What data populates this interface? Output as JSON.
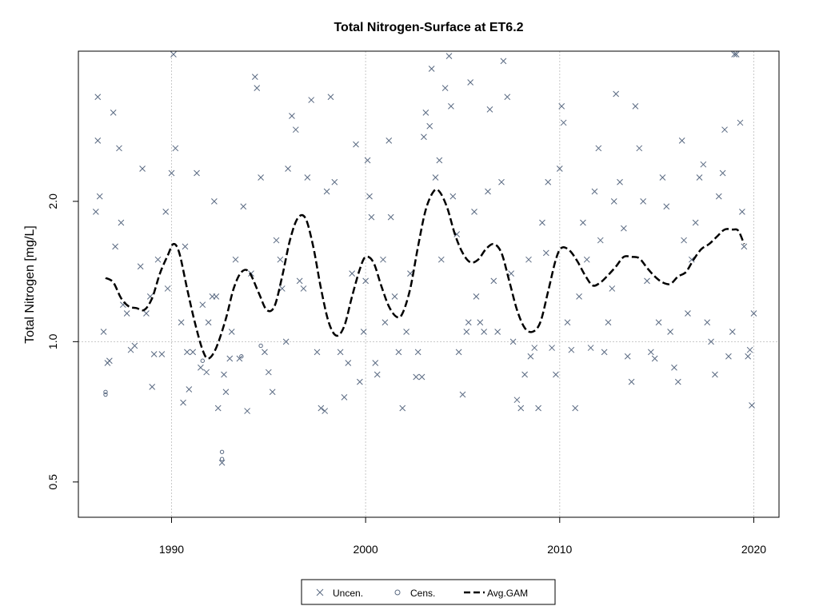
{
  "chart_data": {
    "type": "scatter",
    "title": "Total Nitrogen-Surface at ET6.2",
    "xlabel": "",
    "ylabel": "Total Nitrogen [mg/L]",
    "xlim": [
      1985.2,
      2021.3
    ],
    "ylim": [
      0.42,
      4.2
    ],
    "y_scale": "log",
    "x_ticks": [
      1990,
      2000,
      2010,
      2020
    ],
    "x_tick_labels": [
      "1990",
      "2000",
      "2010",
      "2020"
    ],
    "y_ticks": [
      0.5,
      1.0,
      2.0
    ],
    "y_tick_labels": [
      "0.5",
      "1.0",
      "2.0"
    ],
    "grid": {
      "x": [
        1990,
        2000,
        2010,
        2020
      ],
      "y": [
        1.0
      ],
      "style": "dotted"
    },
    "legend": {
      "position": "bottom-center",
      "entries": [
        {
          "label": "Uncen.",
          "marker": "x"
        },
        {
          "label": "Cens.",
          "marker": "o"
        },
        {
          "label": "Avg.GAM",
          "marker": "dashed-line"
        }
      ]
    },
    "colors": {
      "points": "#5a6a82",
      "gam": "#000000",
      "grid": "#c8c8c8"
    },
    "series": [
      {
        "name": "Uncen.",
        "marker": "x",
        "points": [
          [
            1986.1,
            1.9
          ],
          [
            1986.2,
            3.35
          ],
          [
            1986.2,
            2.7
          ],
          [
            1986.3,
            2.05
          ],
          [
            1986.5,
            1.05
          ],
          [
            1986.7,
            0.9
          ],
          [
            1986.8,
            0.91
          ],
          [
            1987.0,
            3.1
          ],
          [
            1987.1,
            1.6
          ],
          [
            1987.3,
            2.6
          ],
          [
            1987.4,
            1.8
          ],
          [
            1987.5,
            1.2
          ],
          [
            1987.7,
            1.15
          ],
          [
            1987.9,
            0.96
          ],
          [
            1988.1,
            0.98
          ],
          [
            1988.4,
            1.45
          ],
          [
            1988.5,
            2.35
          ],
          [
            1988.7,
            1.15
          ],
          [
            1988.9,
            1.25
          ],
          [
            1989.0,
            0.8
          ],
          [
            1989.1,
            0.94
          ],
          [
            1989.3,
            1.5
          ],
          [
            1989.5,
            0.94
          ],
          [
            1989.7,
            1.9
          ],
          [
            1989.8,
            1.3
          ],
          [
            1990.0,
            2.3
          ],
          [
            1990.1,
            4.15
          ],
          [
            1990.2,
            2.6
          ],
          [
            1990.5,
            1.1
          ],
          [
            1990.6,
            0.74
          ],
          [
            1990.7,
            1.6
          ],
          [
            1990.8,
            0.95
          ],
          [
            1990.9,
            0.79
          ],
          [
            1991.1,
            0.95
          ],
          [
            1991.3,
            2.3
          ],
          [
            1991.5,
            0.88
          ],
          [
            1991.6,
            1.2
          ],
          [
            1991.8,
            0.86
          ],
          [
            1991.9,
            1.1
          ],
          [
            1992.1,
            1.25
          ],
          [
            1992.2,
            2.0
          ],
          [
            1992.3,
            1.25
          ],
          [
            1992.4,
            0.72
          ],
          [
            1992.6,
            0.55
          ],
          [
            1992.7,
            0.85
          ],
          [
            1992.8,
            0.78
          ],
          [
            1993.0,
            0.92
          ],
          [
            1993.1,
            1.05
          ],
          [
            1993.3,
            1.5
          ],
          [
            1993.5,
            0.92
          ],
          [
            1993.7,
            1.95
          ],
          [
            1993.9,
            0.71
          ],
          [
            1994.1,
            1.4
          ],
          [
            1994.3,
            3.7
          ],
          [
            1994.4,
            3.5
          ],
          [
            1994.6,
            2.25
          ],
          [
            1994.8,
            0.95
          ],
          [
            1995.0,
            0.86
          ],
          [
            1995.2,
            0.78
          ],
          [
            1995.4,
            1.65
          ],
          [
            1995.6,
            1.5
          ],
          [
            1995.7,
            1.3
          ],
          [
            1995.9,
            1.0
          ],
          [
            1996.0,
            2.35
          ],
          [
            1996.2,
            3.05
          ],
          [
            1996.4,
            2.85
          ],
          [
            1996.6,
            1.35
          ],
          [
            1996.8,
            1.3
          ],
          [
            1997.0,
            2.25
          ],
          [
            1997.2,
            3.3
          ],
          [
            1997.5,
            0.95
          ],
          [
            1997.7,
            0.72
          ],
          [
            1997.9,
            0.71
          ],
          [
            1998.0,
            2.1
          ],
          [
            1998.2,
            3.35
          ],
          [
            1998.4,
            2.2
          ],
          [
            1998.7,
            0.95
          ],
          [
            1998.9,
            0.76
          ],
          [
            1999.1,
            0.9
          ],
          [
            1999.3,
            1.4
          ],
          [
            1999.5,
            2.65
          ],
          [
            1999.7,
            0.82
          ],
          [
            1999.9,
            1.05
          ],
          [
            2000.0,
            1.35
          ],
          [
            2000.1,
            2.45
          ],
          [
            2000.2,
            2.05
          ],
          [
            2000.3,
            1.85
          ],
          [
            2000.5,
            0.9
          ],
          [
            2000.6,
            0.85
          ],
          [
            2000.9,
            1.5
          ],
          [
            2001.0,
            1.1
          ],
          [
            2001.2,
            2.7
          ],
          [
            2001.3,
            1.85
          ],
          [
            2001.5,
            1.25
          ],
          [
            2001.7,
            0.95
          ],
          [
            2001.9,
            0.72
          ],
          [
            2002.1,
            1.05
          ],
          [
            2002.3,
            1.4
          ],
          [
            2002.6,
            0.84
          ],
          [
            2002.7,
            0.95
          ],
          [
            2002.9,
            0.84
          ],
          [
            2003.0,
            2.75
          ],
          [
            2003.1,
            3.1
          ],
          [
            2003.3,
            2.9
          ],
          [
            2003.4,
            3.85
          ],
          [
            2003.6,
            2.25
          ],
          [
            2003.8,
            2.45
          ],
          [
            2003.9,
            1.5
          ],
          [
            2004.1,
            3.5
          ],
          [
            2004.3,
            4.1
          ],
          [
            2004.4,
            3.2
          ],
          [
            2004.5,
            2.05
          ],
          [
            2004.7,
            1.7
          ],
          [
            2004.8,
            0.95
          ],
          [
            2005.0,
            0.77
          ],
          [
            2005.2,
            1.05
          ],
          [
            2005.3,
            1.1
          ],
          [
            2005.4,
            3.6
          ],
          [
            2005.6,
            1.9
          ],
          [
            2005.7,
            1.25
          ],
          [
            2005.9,
            1.1
          ],
          [
            2006.1,
            1.05
          ],
          [
            2006.3,
            2.1
          ],
          [
            2006.4,
            3.15
          ],
          [
            2006.6,
            1.35
          ],
          [
            2006.8,
            1.05
          ],
          [
            2007.0,
            2.2
          ],
          [
            2007.1,
            4.0
          ],
          [
            2007.3,
            3.35
          ],
          [
            2007.5,
            1.4
          ],
          [
            2007.6,
            1.0
          ],
          [
            2007.8,
            0.75
          ],
          [
            2008.0,
            0.72
          ],
          [
            2008.2,
            0.85
          ],
          [
            2008.4,
            1.5
          ],
          [
            2008.5,
            0.93
          ],
          [
            2008.7,
            0.97
          ],
          [
            2008.9,
            0.72
          ],
          [
            2009.1,
            1.8
          ],
          [
            2009.3,
            1.55
          ],
          [
            2009.4,
            2.2
          ],
          [
            2009.6,
            0.97
          ],
          [
            2009.8,
            0.85
          ],
          [
            2010.0,
            2.35
          ],
          [
            2010.1,
            3.2
          ],
          [
            2010.2,
            2.95
          ],
          [
            2010.4,
            1.1
          ],
          [
            2010.6,
            0.96
          ],
          [
            2010.8,
            0.72
          ],
          [
            2011.0,
            1.25
          ],
          [
            2011.2,
            1.8
          ],
          [
            2011.4,
            1.5
          ],
          [
            2011.6,
            0.97
          ],
          [
            2011.8,
            2.1
          ],
          [
            2012.0,
            2.6
          ],
          [
            2012.1,
            1.65
          ],
          [
            2012.3,
            0.95
          ],
          [
            2012.5,
            1.1
          ],
          [
            2012.7,
            1.3
          ],
          [
            2012.8,
            2.0
          ],
          [
            2012.9,
            3.4
          ],
          [
            2013.1,
            2.2
          ],
          [
            2013.3,
            1.75
          ],
          [
            2013.5,
            0.93
          ],
          [
            2013.7,
            0.82
          ],
          [
            2013.9,
            3.2
          ],
          [
            2014.1,
            2.6
          ],
          [
            2014.3,
            2.0
          ],
          [
            2014.5,
            1.35
          ],
          [
            2014.7,
            0.95
          ],
          [
            2014.9,
            0.92
          ],
          [
            2015.1,
            1.1
          ],
          [
            2015.3,
            2.25
          ],
          [
            2015.5,
            1.95
          ],
          [
            2015.7,
            1.05
          ],
          [
            2015.9,
            0.88
          ],
          [
            2016.1,
            0.82
          ],
          [
            2016.3,
            2.7
          ],
          [
            2016.4,
            1.65
          ],
          [
            2016.6,
            1.15
          ],
          [
            2016.8,
            1.5
          ],
          [
            2017.0,
            1.8
          ],
          [
            2017.2,
            2.25
          ],
          [
            2017.4,
            2.4
          ],
          [
            2017.6,
            1.1
          ],
          [
            2017.8,
            1.0
          ],
          [
            2018.0,
            0.85
          ],
          [
            2018.2,
            2.05
          ],
          [
            2018.4,
            2.3
          ],
          [
            2018.5,
            2.85
          ],
          [
            2018.7,
            0.93
          ],
          [
            2018.9,
            1.05
          ],
          [
            2019.0,
            4.4
          ],
          [
            2019.1,
            4.3
          ],
          [
            2019.3,
            2.95
          ],
          [
            2019.4,
            1.9
          ],
          [
            2019.5,
            1.6
          ],
          [
            2019.7,
            0.93
          ],
          [
            2019.8,
            0.96
          ],
          [
            2019.9,
            0.73
          ],
          [
            2020.0,
            1.15
          ]
        ]
      },
      {
        "name": "Cens.",
        "marker": "o",
        "points": [
          [
            1986.6,
            0.78
          ],
          [
            1986.6,
            0.77
          ],
          [
            1991.6,
            0.91
          ],
          [
            1992.6,
            0.58
          ],
          [
            1992.6,
            0.56
          ],
          [
            1993.6,
            0.93
          ],
          [
            1994.6,
            0.98
          ]
        ]
      },
      {
        "name": "Avg.GAM",
        "marker": "dashed-line",
        "points": [
          [
            1986.6,
            1.37
          ],
          [
            1987.0,
            1.34
          ],
          [
            1987.4,
            1.24
          ],
          [
            1987.8,
            1.19
          ],
          [
            1988.2,
            1.18
          ],
          [
            1988.6,
            1.17
          ],
          [
            1989.0,
            1.24
          ],
          [
            1989.4,
            1.4
          ],
          [
            1989.8,
            1.53
          ],
          [
            1990.1,
            1.62
          ],
          [
            1990.4,
            1.55
          ],
          [
            1990.8,
            1.3
          ],
          [
            1991.2,
            1.1
          ],
          [
            1991.6,
            0.96
          ],
          [
            1991.9,
            0.92
          ],
          [
            1992.3,
            0.97
          ],
          [
            1992.8,
            1.12
          ],
          [
            1993.2,
            1.3
          ],
          [
            1993.6,
            1.41
          ],
          [
            1994.0,
            1.41
          ],
          [
            1994.5,
            1.27
          ],
          [
            1994.9,
            1.17
          ],
          [
            1995.3,
            1.19
          ],
          [
            1995.7,
            1.38
          ],
          [
            1996.1,
            1.65
          ],
          [
            1996.5,
            1.84
          ],
          [
            1996.9,
            1.84
          ],
          [
            1997.3,
            1.6
          ],
          [
            1997.7,
            1.3
          ],
          [
            1998.1,
            1.1
          ],
          [
            1998.5,
            1.03
          ],
          [
            1998.9,
            1.08
          ],
          [
            1999.3,
            1.25
          ],
          [
            1999.7,
            1.43
          ],
          [
            2000.0,
            1.52
          ],
          [
            2000.4,
            1.48
          ],
          [
            2000.8,
            1.32
          ],
          [
            2001.2,
            1.19
          ],
          [
            2001.6,
            1.13
          ],
          [
            2001.9,
            1.15
          ],
          [
            2002.3,
            1.3
          ],
          [
            2002.7,
            1.6
          ],
          [
            2003.1,
            1.92
          ],
          [
            2003.5,
            2.1
          ],
          [
            2003.8,
            2.1
          ],
          [
            2004.2,
            1.94
          ],
          [
            2004.6,
            1.7
          ],
          [
            2005.0,
            1.55
          ],
          [
            2005.4,
            1.48
          ],
          [
            2005.8,
            1.5
          ],
          [
            2006.2,
            1.58
          ],
          [
            2006.6,
            1.62
          ],
          [
            2007.0,
            1.55
          ],
          [
            2007.4,
            1.35
          ],
          [
            2007.8,
            1.17
          ],
          [
            2008.2,
            1.07
          ],
          [
            2008.6,
            1.05
          ],
          [
            2009.0,
            1.1
          ],
          [
            2009.4,
            1.28
          ],
          [
            2009.8,
            1.5
          ],
          [
            2010.1,
            1.59
          ],
          [
            2010.5,
            1.57
          ],
          [
            2010.9,
            1.49
          ],
          [
            2011.3,
            1.39
          ],
          [
            2011.7,
            1.32
          ],
          [
            2012.1,
            1.34
          ],
          [
            2012.5,
            1.39
          ],
          [
            2012.9,
            1.45
          ],
          [
            2013.3,
            1.52
          ],
          [
            2013.7,
            1.52
          ],
          [
            2014.1,
            1.51
          ],
          [
            2014.5,
            1.44
          ],
          [
            2014.9,
            1.38
          ],
          [
            2015.3,
            1.34
          ],
          [
            2015.7,
            1.33
          ],
          [
            2016.1,
            1.38
          ],
          [
            2016.5,
            1.41
          ],
          [
            2016.9,
            1.5
          ],
          [
            2017.3,
            1.58
          ],
          [
            2017.7,
            1.62
          ],
          [
            2018.1,
            1.68
          ],
          [
            2018.5,
            1.74
          ],
          [
            2018.9,
            1.74
          ],
          [
            2019.2,
            1.73
          ],
          [
            2019.5,
            1.62
          ]
        ]
      }
    ]
  }
}
